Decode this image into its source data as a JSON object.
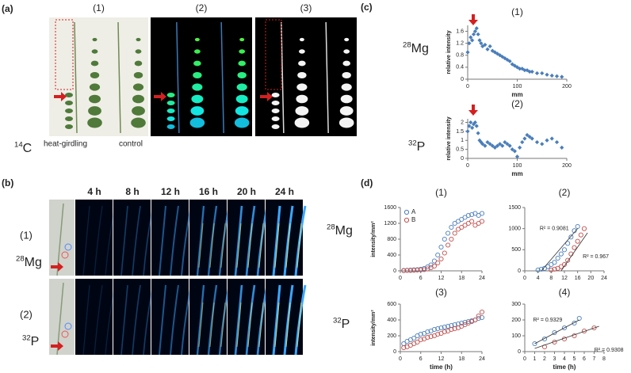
{
  "figure": {
    "panel_a": {
      "label": "(a)",
      "subpanels": [
        "(1)",
        "(2)",
        "(3)"
      ],
      "isotope": {
        "mass": "14",
        "element": "C"
      },
      "captions": [
        "heat-girdling",
        "control"
      ]
    },
    "panel_b": {
      "label": "(b)",
      "times": [
        "4 h",
        "8 h",
        "12 h",
        "16 h",
        "20 h",
        "24 h"
      ],
      "rows": [
        {
          "label": "(1)",
          "isotope": {
            "mass": "28",
            "element": "Mg"
          }
        },
        {
          "label": "(2)",
          "isotope": {
            "mass": "32",
            "element": "P"
          }
        }
      ]
    },
    "panel_c": {
      "label": "(c)",
      "isotopes": [
        {
          "mass": "28",
          "element": "Mg"
        },
        {
          "mass": "32",
          "element": "P"
        }
      ]
    },
    "panel_d": {
      "label": "(d)",
      "isotopes": [
        {
          "mass": "28",
          "element": "Mg"
        },
        {
          "mass": "32",
          "element": "P"
        }
      ]
    }
  },
  "chart_data": [
    {
      "type": "scatter",
      "title": "(1)",
      "ylabel": "relative intensity",
      "xlabel": "mm",
      "xlim": [
        0,
        200
      ],
      "xticks": [
        0,
        100,
        200
      ],
      "ylim": [
        0,
        1.8
      ],
      "yticks": [
        0,
        0.4,
        0.8,
        1.2,
        1.6
      ],
      "marker": "diamond",
      "series": [
        {
          "color": "#4a7ebb",
          "x": [
            0,
            3,
            6,
            9,
            12,
            15,
            18,
            21,
            24,
            27,
            30,
            35,
            40,
            45,
            50,
            55,
            60,
            65,
            70,
            75,
            80,
            85,
            90,
            95,
            100,
            105,
            110,
            115,
            120,
            125,
            130,
            140,
            150,
            160,
            170,
            180,
            190
          ],
          "values": [
            0.9,
            1.2,
            1.4,
            1.3,
            1.5,
            1.6,
            1.7,
            1.5,
            1.3,
            1.2,
            1.1,
            1.15,
            1.0,
            1.1,
            0.95,
            0.9,
            0.85,
            0.8,
            0.75,
            0.7,
            0.65,
            0.6,
            0.5,
            0.45,
            0.4,
            0.35,
            0.35,
            0.3,
            0.3,
            0.25,
            0.25,
            0.2,
            0.2,
            0.15,
            0.12,
            0.1,
            0.08
          ]
        }
      ]
    },
    {
      "type": "scatter",
      "title": "(2)",
      "ylabel": "relative intensity",
      "xlabel": "mm",
      "xlim": [
        0,
        200
      ],
      "xticks": [
        0,
        100,
        200
      ],
      "ylim": [
        0,
        2.2
      ],
      "yticks": [
        0,
        0.5,
        1,
        1.5,
        2
      ],
      "marker": "diamond",
      "series": [
        {
          "color": "#4a7ebb",
          "x": [
            0,
            3,
            6,
            9,
            12,
            15,
            18,
            21,
            24,
            27,
            30,
            35,
            40,
            45,
            50,
            55,
            60,
            65,
            70,
            75,
            80,
            85,
            90,
            95,
            100,
            105,
            110,
            115,
            120,
            125,
            130,
            140,
            150,
            160,
            170,
            180,
            190
          ],
          "values": [
            1.5,
            1.8,
            2.0,
            1.7,
            1.9,
            2.0,
            1.8,
            1.4,
            1.0,
            0.9,
            0.8,
            0.7,
            0.9,
            0.8,
            0.7,
            0.6,
            0.7,
            0.8,
            0.7,
            0.9,
            0.8,
            0.7,
            0.5,
            0.4,
            0.1,
            0.6,
            0.9,
            1.1,
            1.3,
            1.2,
            1.1,
            0.9,
            0.8,
            1.0,
            1.1,
            0.9,
            0.6
          ]
        }
      ]
    },
    {
      "type": "scatter",
      "title": "(1)",
      "ylabel": "intensity/mm²",
      "legend": "upper left",
      "xlim": [
        0,
        24
      ],
      "xticks": [
        0,
        6,
        12,
        18,
        24
      ],
      "ylim": [
        0,
        1600
      ],
      "yticks": [
        0,
        400,
        800,
        1200,
        1600
      ],
      "marker": "open-circle",
      "series": [
        {
          "name": "A",
          "color": "#4a7ebb",
          "x": [
            1,
            2,
            3,
            4,
            5,
            6,
            7,
            8,
            9,
            10,
            11,
            12,
            13,
            14,
            15,
            16,
            17,
            18,
            19,
            20,
            21,
            22,
            23,
            24
          ],
          "values": [
            10,
            15,
            20,
            25,
            30,
            40,
            60,
            100,
            150,
            250,
            400,
            600,
            800,
            950,
            1100,
            1200,
            1250,
            1300,
            1350,
            1400,
            1420,
            1450,
            1400,
            1450
          ]
        },
        {
          "name": "B",
          "color": "#c0504d",
          "x": [
            1,
            2,
            3,
            4,
            5,
            6,
            7,
            8,
            9,
            10,
            11,
            12,
            13,
            14,
            15,
            16,
            17,
            18,
            19,
            20,
            21,
            22,
            23,
            24
          ],
          "values": [
            5,
            10,
            10,
            15,
            20,
            25,
            30,
            50,
            80,
            120,
            200,
            300,
            450,
            650,
            800,
            950,
            1050,
            1100,
            1150,
            1200,
            1250,
            1150,
            1200,
            1250
          ]
        }
      ]
    },
    {
      "type": "scatter",
      "title": "(2)",
      "xlim": [
        0,
        24
      ],
      "xticks": [
        0,
        4,
        8,
        12,
        16,
        20,
        24
      ],
      "ylim": [
        0,
        1500
      ],
      "yticks": [
        0,
        500,
        1000,
        1500
      ],
      "marker": "open-circle",
      "series": [
        {
          "color": "#4a7ebb",
          "x": [
            4,
            5,
            6,
            7,
            8,
            9,
            10,
            11,
            12,
            13,
            14,
            15,
            16
          ],
          "values": [
            20,
            40,
            60,
            100,
            150,
            200,
            300,
            400,
            500,
            650,
            800,
            950,
            1050
          ],
          "fit": {
            "x": [
              5,
              16
            ],
            "values": [
              0,
              1000
            ],
            "label": "R² = 0.9081"
          }
        },
        {
          "color": "#c0504d",
          "x": [
            8,
            9,
            10,
            11,
            12,
            13,
            14,
            15,
            16,
            17,
            18
          ],
          "values": [
            20,
            40,
            60,
            100,
            150,
            250,
            400,
            550,
            700,
            850,
            1000
          ],
          "fit": {
            "x": [
              11,
              19
            ],
            "values": [
              0,
              900
            ],
            "label": "R² = 0.967"
          }
        }
      ]
    },
    {
      "type": "scatter",
      "title": "(3)",
      "ylabel": "intensity/mm²",
      "xlabel": "time (h)",
      "xlim": [
        0,
        24
      ],
      "xticks": [
        0,
        6,
        12,
        18,
        24
      ],
      "ylim": [
        0,
        600
      ],
      "yticks": [
        0,
        200,
        400,
        600
      ],
      "marker": "open-circle",
      "series": [
        {
          "color": "#4a7ebb",
          "x": [
            1,
            2,
            3,
            4,
            5,
            6,
            7,
            8,
            9,
            10,
            11,
            12,
            13,
            14,
            15,
            16,
            17,
            18,
            19,
            20,
            21,
            22,
            23,
            24
          ],
          "values": [
            100,
            130,
            150,
            170,
            200,
            220,
            230,
            250,
            260,
            280,
            290,
            300,
            310,
            320,
            330,
            340,
            350,
            360,
            370,
            380,
            390,
            400,
            420,
            430
          ]
        },
        {
          "color": "#c0504d",
          "x": [
            1,
            2,
            3,
            4,
            5,
            6,
            7,
            8,
            9,
            10,
            11,
            12,
            13,
            14,
            15,
            16,
            17,
            18,
            19,
            20,
            21,
            22,
            23,
            24
          ],
          "values": [
            50,
            60,
            80,
            100,
            120,
            150,
            160,
            180,
            190,
            200,
            220,
            230,
            250,
            260,
            280,
            290,
            300,
            320,
            340,
            360,
            380,
            400,
            450,
            500
          ]
        }
      ]
    },
    {
      "type": "scatter",
      "title": "(4)",
      "xlabel": "time (h)",
      "xlim": [
        0,
        8
      ],
      "xticks": [
        0,
        1,
        2,
        3,
        4,
        5,
        6,
        7,
        8
      ],
      "ylim": [
        0,
        300
      ],
      "yticks": [
        0,
        100,
        200,
        300
      ],
      "marker": "open-circle",
      "series": [
        {
          "color": "#4a7ebb",
          "x": [
            1,
            2,
            3,
            4,
            5,
            5.5
          ],
          "values": [
            50,
            80,
            120,
            150,
            180,
            210
          ],
          "fit": {
            "x": [
              1,
              5.5
            ],
            "values": [
              50,
              200
            ],
            "label": "R² = 0.9329"
          }
        },
        {
          "color": "#c0504d",
          "x": [
            2,
            3,
            4,
            5,
            6,
            7
          ],
          "values": [
            30,
            60,
            80,
            100,
            130,
            150
          ],
          "fit": {
            "x": [
              1,
              7.5
            ],
            "values": [
              20,
              160
            ],
            "label": "R² = 0.9308"
          }
        }
      ]
    }
  ]
}
